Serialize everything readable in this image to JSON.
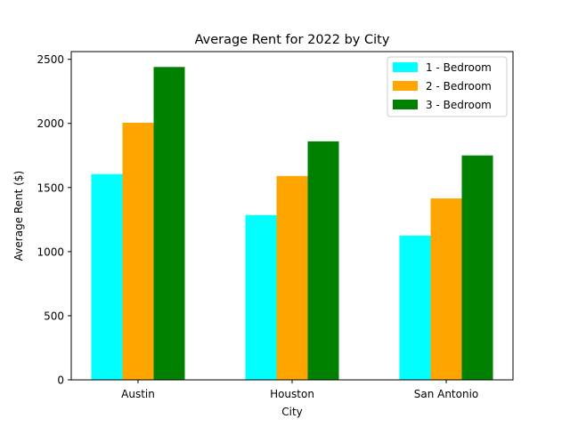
{
  "chart_data": {
    "type": "bar",
    "title": "Average Rent for 2022 by City",
    "xlabel": "City",
    "ylabel": "Average Rent ($)",
    "categories": [
      "Austin",
      "Houston",
      "San Antonio"
    ],
    "ylim": [
      0,
      2560
    ],
    "yticks": [
      0,
      500,
      1000,
      1500,
      2000,
      2500
    ],
    "grid": false,
    "legend_position": "top-right",
    "series": [
      {
        "name": "1 - Bedroom",
        "values": [
          1605,
          1285,
          1125
        ],
        "color": "#00ffff"
      },
      {
        "name": "2 - Bedroom",
        "values": [
          2005,
          1590,
          1415
        ],
        "color": "#ffa500"
      },
      {
        "name": "3 - Bedroom",
        "values": [
          2440,
          1860,
          1750
        ],
        "color": "#008000"
      }
    ]
  }
}
